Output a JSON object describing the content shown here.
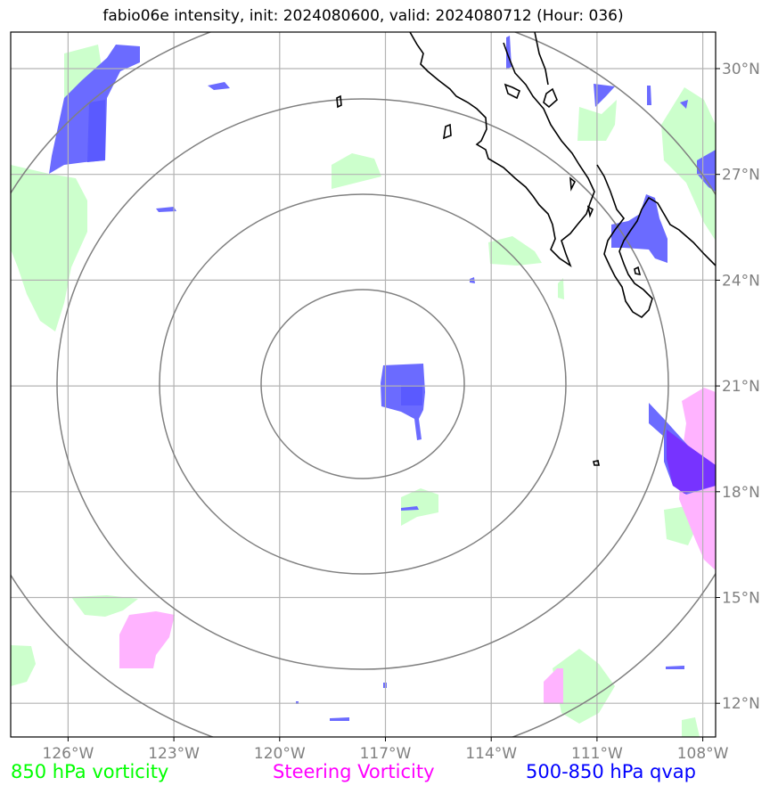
{
  "title": "fabio06e intensity, init: 2024080600, valid: 2024080712 (Hour: 036)",
  "longitude_labels": [
    "126°W",
    "123°W",
    "120°W",
    "117°W",
    "114°W",
    "111°W",
    "108°W"
  ],
  "latitude_labels": [
    "30°N",
    "27°N",
    "24°N",
    "21°N",
    "18°N",
    "15°N",
    "12°N"
  ],
  "legend": [
    {
      "label": "850 hPa vorticity",
      "color": "#00ff00"
    },
    {
      "label": "Steering Vorticity",
      "color": "#ff00ff"
    },
    {
      "label": "500-850 hPa qvap",
      "color": "#0000ff"
    }
  ],
  "fill_colors": {
    "vorticity_850": "#ccffcc",
    "steering_vorticity": "#ffb3ff",
    "qvap": "#6b6bff",
    "qvap_dark": "#5050ff",
    "overlap": "#7733ff"
  },
  "range_rings": 4,
  "map_features": [
    "coastline",
    "graticule",
    "range-rings"
  ]
}
